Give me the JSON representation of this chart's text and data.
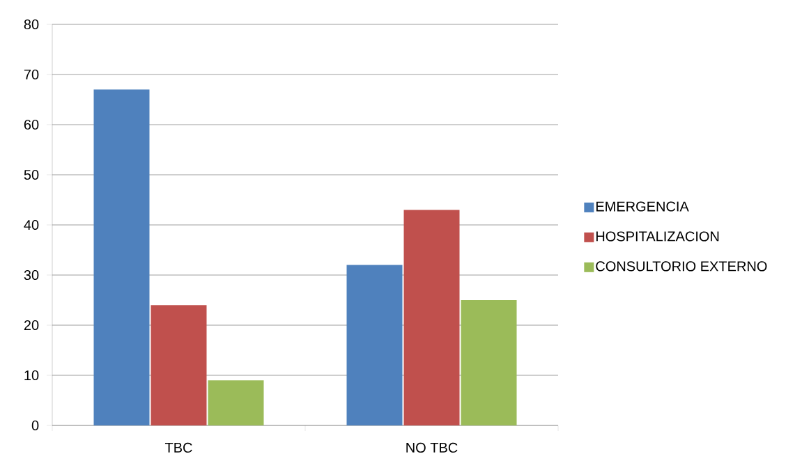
{
  "chart_data": {
    "type": "bar",
    "categories": [
      "TBC",
      "NO TBC"
    ],
    "series": [
      {
        "name": "EMERGENCIA",
        "color": "#4f81bd",
        "values": [
          67,
          32
        ]
      },
      {
        "name": "HOSPITALIZACION",
        "color": "#c0504d",
        "values": [
          24,
          43
        ]
      },
      {
        "name": "CONSULTORIO EXTERNO",
        "color": "#9bbb59",
        "values": [
          9,
          25
        ]
      }
    ],
    "ylim": [
      0,
      80
    ],
    "yticks": [
      0,
      10,
      20,
      30,
      40,
      50,
      60,
      70,
      80
    ],
    "grid": "y",
    "legend": "right"
  }
}
